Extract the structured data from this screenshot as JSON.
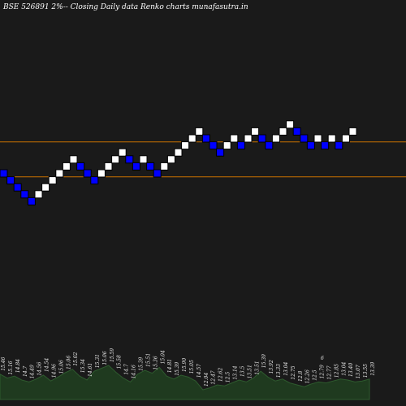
{
  "title": "BSE 526891 2%-- Closing Daily data Renko  charts munafasutra.in",
  "colors": {
    "background": "#1a1a1a",
    "up_brick": "#ffffff",
    "down_brick": "#0000ff",
    "brick_border": "#000000",
    "level_line": "#c87000",
    "volume_fill": "#1f3a1f",
    "volume_line": "#2e5a2e"
  },
  "chart_data": {
    "type": "renko",
    "brick_size": "2%",
    "bricks": [
      {
        "dir": "down",
        "level": 0
      },
      {
        "dir": "down",
        "level": -1
      },
      {
        "dir": "down",
        "level": -2
      },
      {
        "dir": "down",
        "level": -3
      },
      {
        "dir": "down",
        "level": -4
      },
      {
        "dir": "up",
        "level": -3
      },
      {
        "dir": "up",
        "level": -2
      },
      {
        "dir": "up",
        "level": -1
      },
      {
        "dir": "up",
        "level": 0
      },
      {
        "dir": "up",
        "level": 1
      },
      {
        "dir": "up",
        "level": 2
      },
      {
        "dir": "down",
        "level": 1
      },
      {
        "dir": "down",
        "level": 0
      },
      {
        "dir": "down",
        "level": -1
      },
      {
        "dir": "up",
        "level": 0
      },
      {
        "dir": "up",
        "level": 1
      },
      {
        "dir": "up",
        "level": 2
      },
      {
        "dir": "up",
        "level": 3
      },
      {
        "dir": "down",
        "level": 2
      },
      {
        "dir": "down",
        "level": 1
      },
      {
        "dir": "up",
        "level": 2
      },
      {
        "dir": "down",
        "level": 1
      },
      {
        "dir": "down",
        "level": 0
      },
      {
        "dir": "up",
        "level": 1
      },
      {
        "dir": "up",
        "level": 2
      },
      {
        "dir": "up",
        "level": 3
      },
      {
        "dir": "up",
        "level": 4
      },
      {
        "dir": "up",
        "level": 5
      },
      {
        "dir": "up",
        "level": 6
      },
      {
        "dir": "down",
        "level": 5
      },
      {
        "dir": "down",
        "level": 4
      },
      {
        "dir": "down",
        "level": 3
      },
      {
        "dir": "up",
        "level": 4
      },
      {
        "dir": "up",
        "level": 5
      },
      {
        "dir": "down",
        "level": 4
      },
      {
        "dir": "up",
        "level": 5
      },
      {
        "dir": "up",
        "level": 6
      },
      {
        "dir": "down",
        "level": 5
      },
      {
        "dir": "down",
        "level": 4
      },
      {
        "dir": "up",
        "level": 5
      },
      {
        "dir": "up",
        "level": 6
      },
      {
        "dir": "up",
        "level": 7
      },
      {
        "dir": "down",
        "level": 6
      },
      {
        "dir": "down",
        "level": 5
      },
      {
        "dir": "down",
        "level": 4
      },
      {
        "dir": "up",
        "level": 5
      },
      {
        "dir": "down",
        "level": 4
      },
      {
        "dir": "up",
        "level": 5
      },
      {
        "dir": "down",
        "level": 4
      },
      {
        "dir": "up",
        "level": 5
      },
      {
        "dir": "up",
        "level": 6
      }
    ],
    "reference_levels": [
      4.5,
      -0.5
    ],
    "volume_labels": [
      "15.46",
      "15.16",
      "14.84",
      "14.7",
      "14.49",
      "14.56",
      "14.54",
      "14.96",
      "15.06",
      "15.06",
      "15.02",
      "15.34",
      "14.61",
      "15.31",
      "15.06",
      "15.59",
      "15.58",
      "14.7",
      "14.16",
      "15.39",
      "15.51",
      "15.36",
      "15.04",
      "14.81",
      "15.39",
      "15.90",
      "15.05",
      "14.57",
      "12.04",
      "12.47",
      "12.62",
      "12.5",
      "13.14",
      "13.5",
      "13.51",
      "13.51",
      "15.39",
      "13.92",
      "13.33",
      "13.04",
      "12.75",
      "12.8",
      "12.26",
      "12.5",
      "12.79",
      "12.77",
      "12.85",
      "13.04",
      "13.40",
      "13.07",
      "13.55",
      "13.39"
    ],
    "extra_label": "6",
    "volume_levels": [
      0.52,
      0.44,
      0.48,
      0.4,
      0.36,
      0.42,
      0.5,
      0.38,
      0.46,
      0.55,
      0.62,
      0.48,
      0.4,
      0.58,
      0.64,
      0.7,
      0.56,
      0.44,
      0.36,
      0.52,
      0.6,
      0.54,
      0.66,
      0.48,
      0.42,
      0.5,
      0.46,
      0.38,
      0.2,
      0.24,
      0.3,
      0.28,
      0.34,
      0.4,
      0.36,
      0.44,
      0.58,
      0.46,
      0.38,
      0.42,
      0.34,
      0.3,
      0.26,
      0.32,
      0.36,
      0.34,
      0.38,
      0.42,
      0.4,
      0.36,
      0.38,
      0.42
    ]
  }
}
